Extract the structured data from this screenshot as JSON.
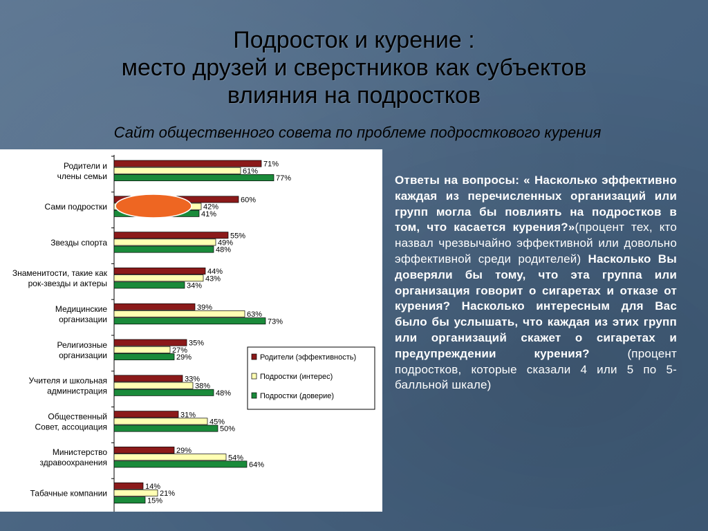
{
  "slide": {
    "title_lines": [
      "Подросток  и курение :",
      "место друзей и сверстников как субъектов",
      "влияния на подростков"
    ],
    "subtitle": "Сайт общественного совета по проблеме подросткового курения"
  },
  "answers": {
    "lead": "Ответы на вопросы: «",
    "q1": "Насколько эффективно каждая из перечисленных организаций или групп могла бы повлиять на подростков в том, что касается курения?»",
    "q1_note": "(процент тех, кто назвал чрезвычайно эффективной или довольно эффективной среди родителей)",
    "q2": "Насколько Вы доверяли бы тому, что эта группа или организация говорит о сигаретах и отказе от курения? Насколько интересным для Вас было бы услышать, что каждая из этих групп или организаций скажет о сигаретах и предупреждении курения?",
    "q2_note": "(процент подростков, которые сказали 4 или 5 по 5-балльной шкале)"
  },
  "colors": {
    "dark_red": "#8b1a1a",
    "yellow": "#ffffb3",
    "green": "#1a8a3a",
    "highlight": "#ee6622"
  },
  "chart_data": {
    "type": "bar",
    "orientation": "horizontal",
    "categories": [
      "Родители и члены семьи",
      "Сами подростки",
      "Звезды спорта",
      "Знаменитости, такие как рок-звезды и актеры",
      "Медицинские организации",
      "Религиозные организации",
      "Учителя и школьная администрация",
      "Общественный Совет, ассоциация",
      "Министерство здравоохранения",
      "Табачные компании"
    ],
    "category_lines": [
      [
        "Родители и",
        "члены семьи"
      ],
      [
        "Сами подростки"
      ],
      [
        "Звезды спорта"
      ],
      [
        "Знаменитости, такие как",
        "рок-звезды и актеры"
      ],
      [
        "Медицинские",
        "организации"
      ],
      [
        "Религиозные",
        "организации"
      ],
      [
        "Учителя и школьная",
        "администрация"
      ],
      [
        "Общественный",
        "Совет, ассоциация"
      ],
      [
        "Министерство",
        "здравоохранения"
      ],
      [
        "Табачные компании"
      ]
    ],
    "series": [
      {
        "name": "Родители (эффективность)",
        "color": "#8b1a1a",
        "values": [
          71,
          60,
          55,
          44,
          39,
          35,
          33,
          31,
          29,
          14
        ]
      },
      {
        "name": "Подростки (интерес)",
        "color": "#ffffb3",
        "values": [
          61,
          42,
          49,
          43,
          63,
          27,
          38,
          45,
          54,
          21
        ]
      },
      {
        "name": "Подростки (доверие)",
        "color": "#1a8a3a",
        "values": [
          77,
          41,
          48,
          34,
          73,
          29,
          48,
          50,
          64,
          15
        ]
      }
    ],
    "value_suffix": "%",
    "legend_position": "right",
    "highlight": {
      "category": "Сами подростки",
      "series": "Родители (эффективность)"
    }
  }
}
